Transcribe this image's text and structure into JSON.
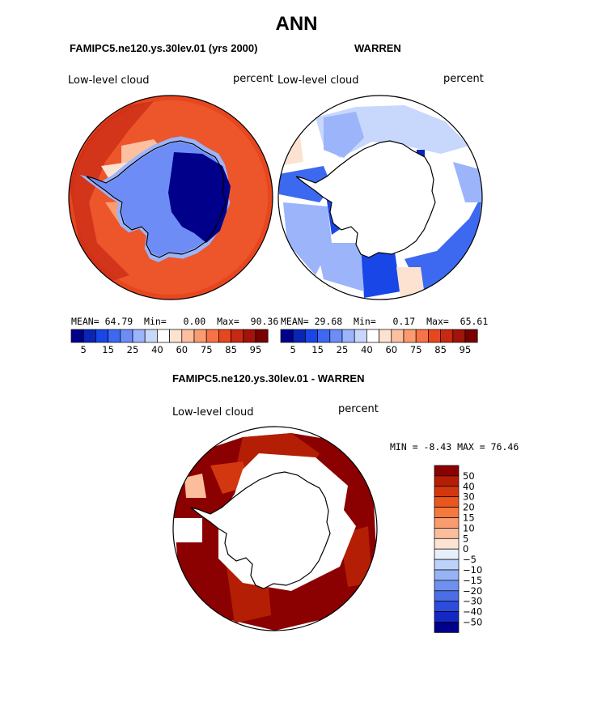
{
  "page": {
    "main_title": "ANN",
    "colors": {
      "land_outline": "#000000",
      "missing": "#ffffff"
    }
  },
  "panels": [
    {
      "title": "FAMIPC5.ne120.ys.30lev.01 (yrs 2000)",
      "left_label": "Low-level cloud",
      "right_label": "percent",
      "stats": {
        "mean_label": "MEAN=",
        "mean": "64.79",
        "min_label": "Min=",
        "min": "0.00",
        "max_label": "Max=",
        "max": "90.36"
      }
    },
    {
      "title": "WARREN",
      "left_label": "Low-level cloud",
      "right_label": "percent",
      "stats": {
        "mean_label": "MEAN=",
        "mean": "29.68",
        "min_label": "Min=",
        "min": "0.17",
        "max_label": "Max=",
        "max": "65.61"
      }
    },
    {
      "title": "FAMIPC5.ne120.ys.30lev.01 - WARREN",
      "left_label": "Low-level cloud",
      "right_label": "percent",
      "stats_text": "MIN =  -8.43 MAX =  76.46"
    }
  ],
  "colorbar_h": {
    "colors": [
      "#00008b",
      "#0a24b4",
      "#1946e6",
      "#3c69f0",
      "#6e8cf5",
      "#9bb4fa",
      "#c8d7fc",
      "#ffffff",
      "#fde2d2",
      "#fcc0a0",
      "#fa9b70",
      "#f57346",
      "#e8461e",
      "#c82814",
      "#a0140a",
      "#780000"
    ],
    "tick_labels": [
      "5",
      "15",
      "25",
      "40",
      "60",
      "75",
      "85",
      "95"
    ]
  },
  "colorbar_v": {
    "colors": [
      "#8b0000",
      "#b41e05",
      "#d2370f",
      "#eb551e",
      "#f5783c",
      "#f89b6e",
      "#fbbd9b",
      "#fde3d2",
      "#e6effa",
      "#bcd2fa",
      "#96b4f5",
      "#6e91f0",
      "#4b6ee6",
      "#2d4bdc",
      "#1428c3",
      "#00008b"
    ],
    "tick_labels": [
      "50",
      "40",
      "30",
      "20",
      "15",
      "10",
      "5",
      "0",
      "−5",
      "−10",
      "−15",
      "−20",
      "−30",
      "−40",
      "−50"
    ]
  },
  "chart_data": [
    {
      "type": "polar-stereographic-map",
      "region": "Antarctic / Southern Ocean",
      "variable": "Low-level cloud",
      "units": "percent",
      "title": "FAMIPC5.ne120.ys.30lev.01 (yrs 2000)",
      "season": "ANN",
      "levels": [
        5,
        10,
        15,
        20,
        25,
        30,
        40,
        50,
        60,
        70,
        75,
        80,
        85,
        90,
        95
      ],
      "stats": {
        "mean": 64.79,
        "min": 0.0,
        "max": 90.36
      }
    },
    {
      "type": "polar-stereographic-map",
      "region": "Antarctic / Southern Ocean",
      "variable": "Low-level cloud",
      "units": "percent",
      "title": "WARREN",
      "season": "ANN",
      "levels": [
        5,
        10,
        15,
        20,
        25,
        30,
        40,
        50,
        60,
        70,
        75,
        80,
        85,
        90,
        95
      ],
      "stats": {
        "mean": 29.68,
        "min": 0.17,
        "max": 65.61
      }
    },
    {
      "type": "polar-stereographic-map",
      "region": "Antarctic / Southern Ocean",
      "variable": "Low-level cloud",
      "units": "percent",
      "title": "FAMIPC5.ne120.ys.30lev.01 - WARREN",
      "season": "ANN",
      "levels": [
        -50,
        -40,
        -30,
        -20,
        -15,
        -10,
        -5,
        0,
        5,
        10,
        15,
        20,
        30,
        40,
        50
      ],
      "stats": {
        "min": -8.43,
        "max": 76.46
      }
    }
  ]
}
